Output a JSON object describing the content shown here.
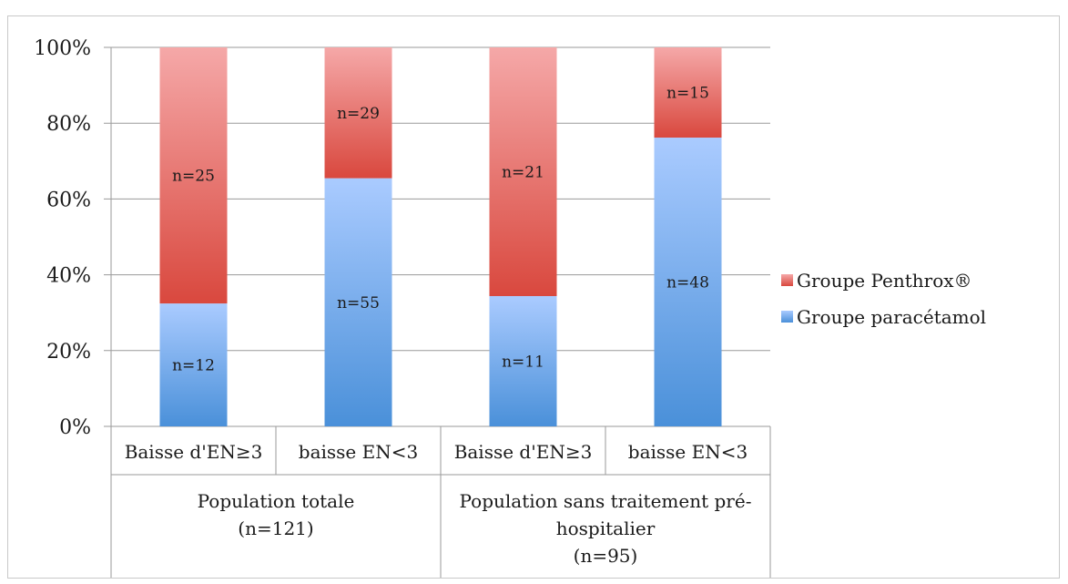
{
  "chart_data": {
    "type": "bar",
    "stacked": true,
    "percent_stacked": true,
    "categories": [
      "Baisse d'EN≥3",
      "baisse EN<3",
      "Baisse d'EN≥3",
      "baisse EN<3"
    ],
    "groups": [
      {
        "lines": [
          "Population totale",
          "(n=121)"
        ],
        "categories": [
          0,
          1
        ]
      },
      {
        "lines": [
          "Population sans traitement pré-",
          "hospitalier",
          "(n=95)"
        ],
        "categories": [
          2,
          3
        ]
      }
    ],
    "series": [
      {
        "name": "Groupe paracétamol",
        "values": [
          12,
          55,
          11,
          48
        ],
        "labels": [
          "n=12",
          "n=55",
          "n=11",
          "n=48"
        ],
        "color_top": "#aacbff",
        "color_bottom": "#4a90d9"
      },
      {
        "name": "Groupe Penthrox®",
        "values": [
          25,
          29,
          21,
          15
        ],
        "labels": [
          "n=25",
          "n=29",
          "n=21",
          "n=15"
        ],
        "color_top": "#f5a8a8",
        "color_bottom": "#d9483e"
      }
    ],
    "y_ticks": [
      "0%",
      "20%",
      "40%",
      "60%",
      "80%",
      "100%"
    ],
    "ylim": [
      0,
      100
    ],
    "grid": true,
    "legend_position": "right"
  }
}
